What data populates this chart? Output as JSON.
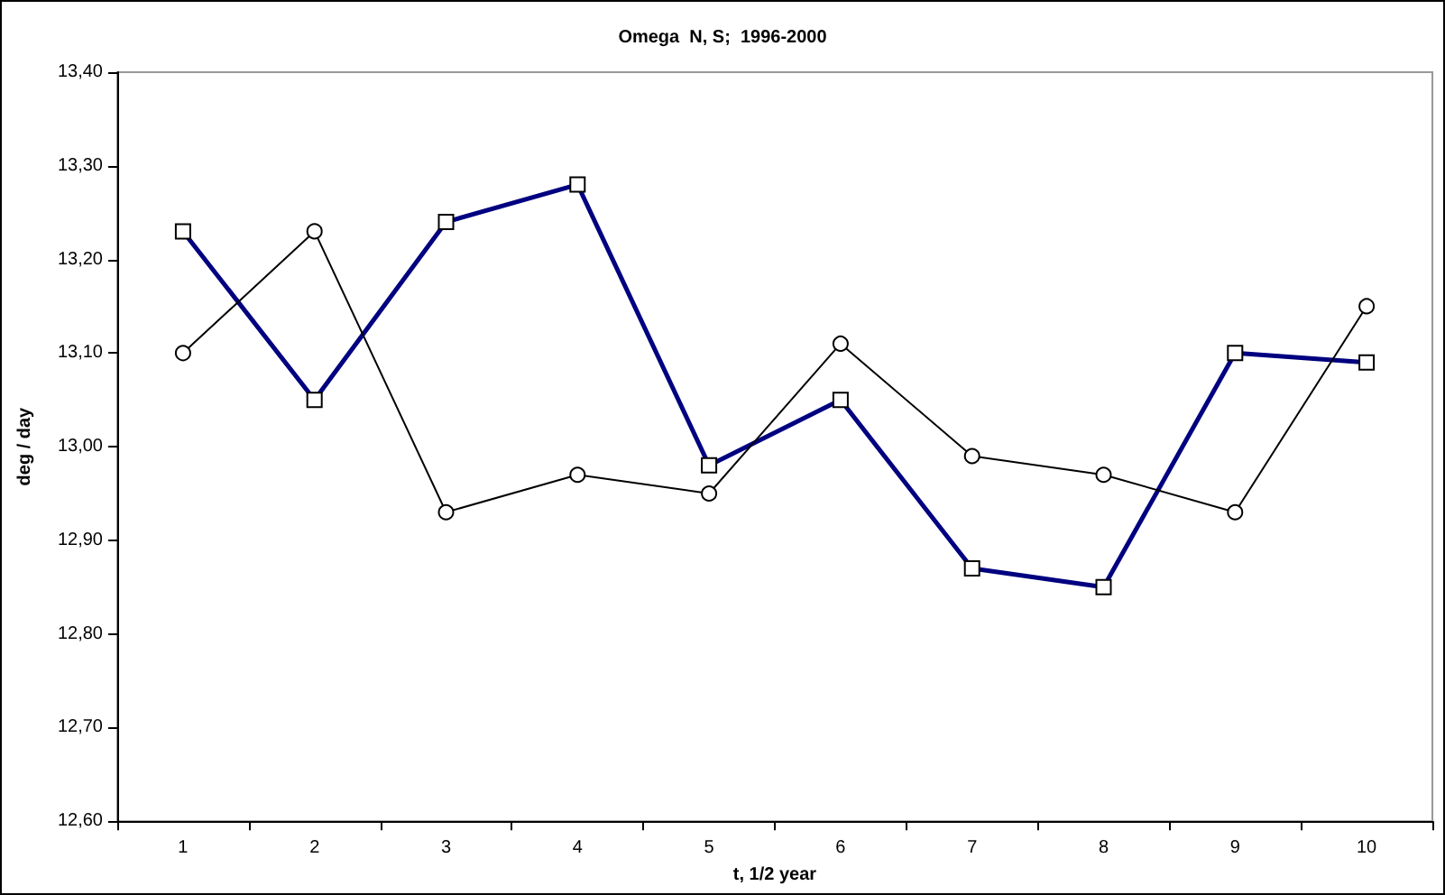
{
  "chart_data": {
    "type": "line",
    "title": "Omega  N, S;  1996-2000",
    "xlabel": "t, 1/2 year",
    "ylabel": "deg / day",
    "categories": [
      "1",
      "2",
      "3",
      "4",
      "5",
      "6",
      "7",
      "8",
      "9",
      "10"
    ],
    "series": [
      {
        "color": "#000080",
        "marker": "square",
        "values": [
          13.23,
          13.05,
          13.24,
          13.28,
          12.98,
          13.05,
          12.87,
          12.85,
          13.1,
          13.09
        ]
      },
      {
        "color": "#000000",
        "marker": "circle",
        "values": [
          13.1,
          13.23,
          12.93,
          12.97,
          12.95,
          13.11,
          12.99,
          12.97,
          12.93,
          13.15
        ]
      }
    ],
    "ylim": [
      12.6,
      13.4
    ],
    "yticks": [
      {
        "value": 12.6,
        "label": "12,60"
      },
      {
        "value": 12.7,
        "label": "12,70"
      },
      {
        "value": 12.8,
        "label": "12,80"
      },
      {
        "value": 12.9,
        "label": "12,90"
      },
      {
        "value": 13.0,
        "label": "13,00"
      },
      {
        "value": 13.1,
        "label": "13,10"
      },
      {
        "value": 13.2,
        "label": "13,20"
      },
      {
        "value": 13.3,
        "label": "13,30"
      },
      {
        "value": 13.4,
        "label": "13,40"
      }
    ],
    "grid": false
  }
}
